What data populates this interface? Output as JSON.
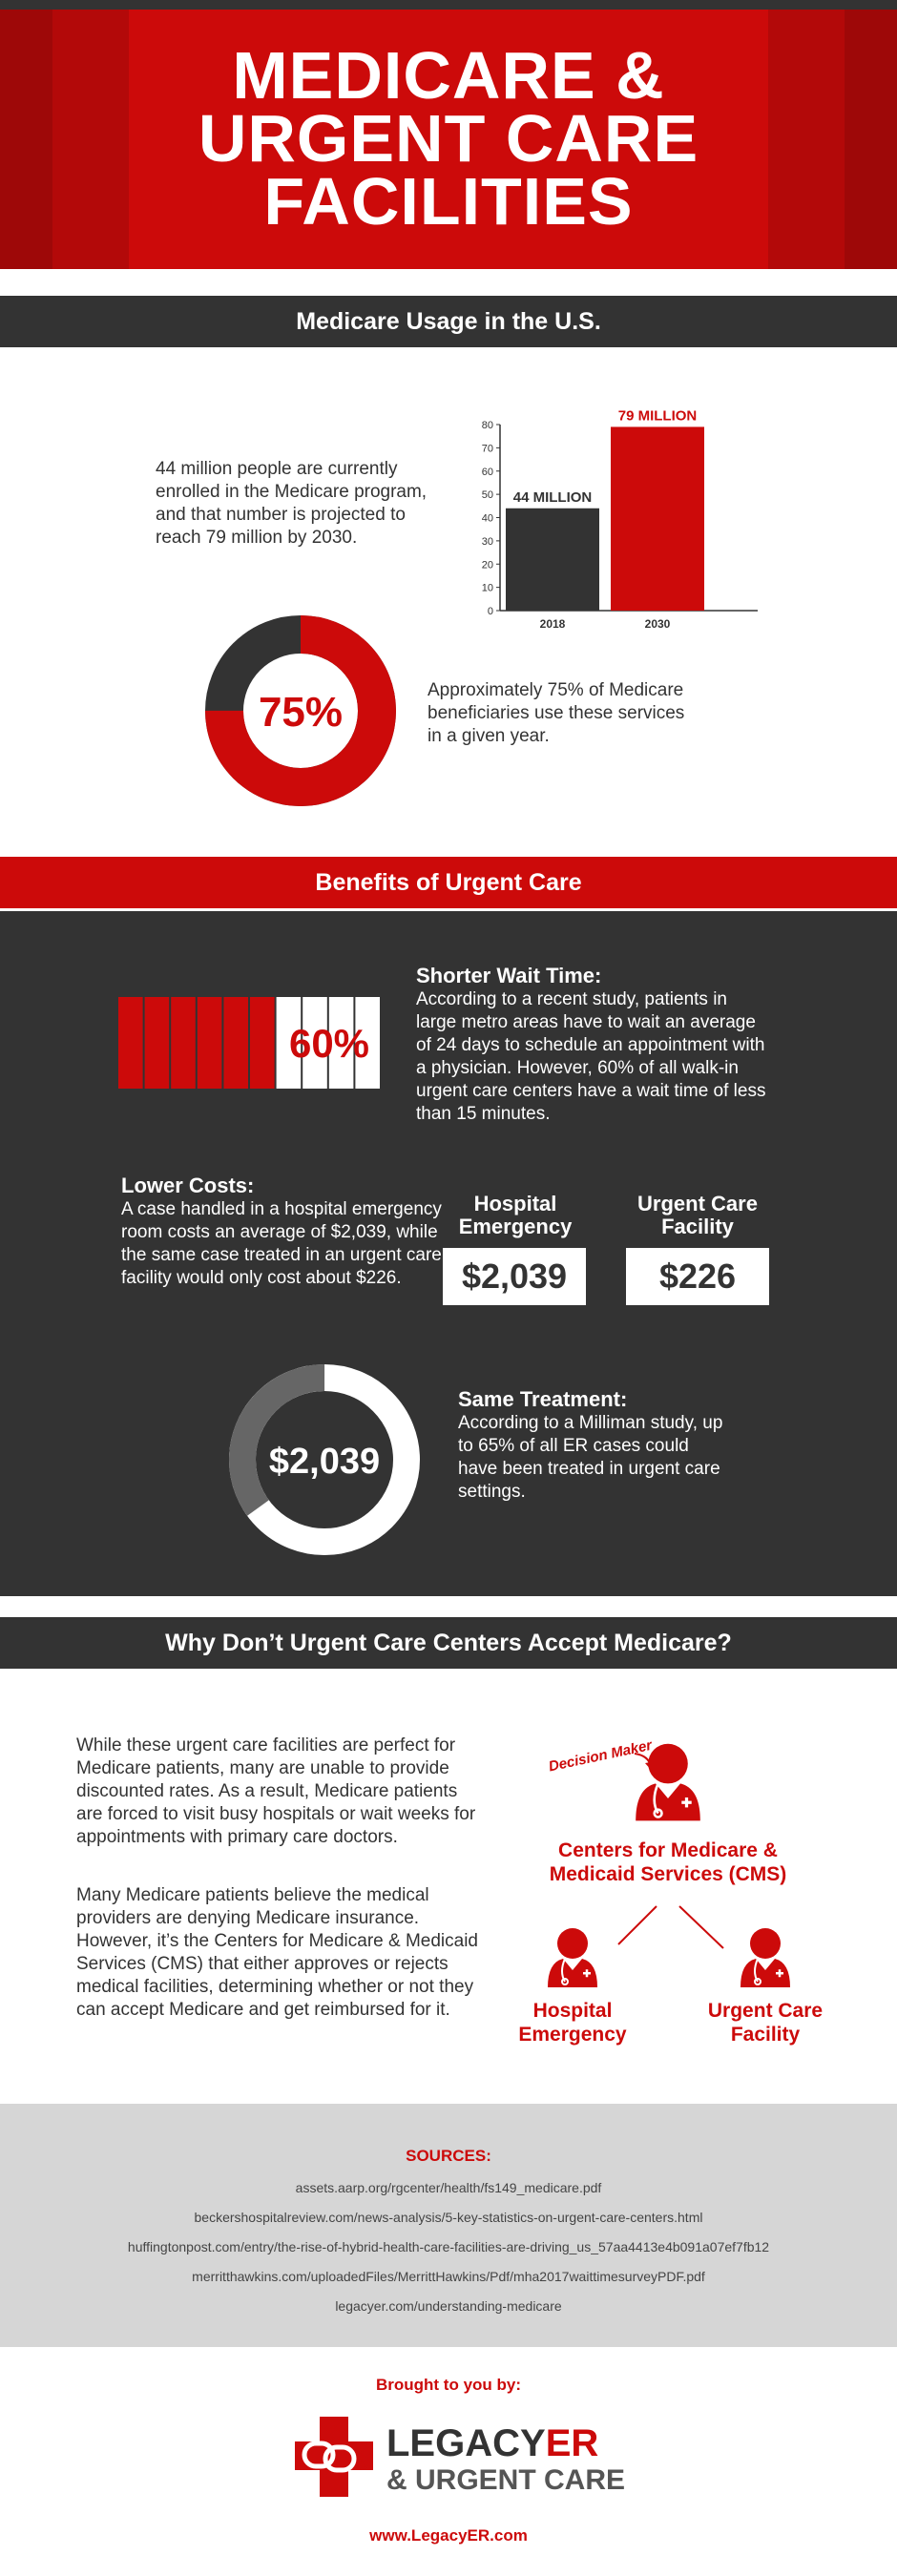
{
  "header": {
    "title_lines": [
      "MEDICARE &",
      "URGENT CARE",
      "FACILITIES"
    ]
  },
  "usage": {
    "heading": "Medicare Usage in the U.S.",
    "text": "44 million people are currently enrolled in the Medicare program, and that number is projected to reach 79 million by 2030.",
    "donut_label": "75%",
    "donut_text": "Approximately 75% of Medicare beneficiaries use these services in a given year."
  },
  "chart_data": {
    "type": "bar",
    "categories": [
      "2018",
      "2030"
    ],
    "values": [
      44,
      79
    ],
    "data_labels": [
      "44 MILLION",
      "79 MILLION"
    ],
    "y_ticks": [
      "0",
      "10",
      "20",
      "30",
      "40",
      "50",
      "60",
      "70",
      "80"
    ],
    "ylim": [
      0,
      80
    ],
    "colors": [
      "#333333",
      "#cc0a0a"
    ]
  },
  "usage_donut": {
    "percent": 75,
    "fill_color": "#cc0a0a",
    "rest_color": "#333333"
  },
  "benefits": {
    "heading": "Benefits of Urgent Care",
    "wait": {
      "title": "Shorter Wait Time:",
      "text": "According to a recent study, patients in large metro areas have to wait an average of 24 days to schedule an appointment with a physician. However, 60% of all walk-in urgent care centers have a wait time of less than 15 minutes.",
      "grid_label": "60%",
      "grid_total": 10,
      "grid_filled": 6
    },
    "costs": {
      "title": "Lower Costs:",
      "text": "A case handled in a hospital emergency room costs an average of $2,039, while the same case treated in an urgent care facility would only cost about $226.",
      "hospital_label": "Hospital Emergency",
      "hospital_value": "$2,039",
      "urgent_label": "Urgent Care Facility",
      "urgent_value": "$226"
    },
    "treatment": {
      "title": "Same Treatment:",
      "text": "According to a Milliman study, up to 65% of all ER cases could have been treated in urgent care settings.",
      "donut_label": "$2,039",
      "donut_percent": 65
    }
  },
  "why": {
    "heading": "Why Don’t Urgent Care Centers Accept Medicare?",
    "p1": "While these urgent care facilities are perfect for Medicare patients, many are unable to provide discounted rates. As a result, Medicare patients are forced to visit busy hospitals or wait weeks for appointments with primary care doctors.",
    "p2": "Many Medicare patients believe the medical providers are denying Medicare insurance. However, it’s the Centers for Medicare & Medicaid Services (CMS) that either approves or rejects medical facilities, determining whether or not they can accept Medicare and get reimbursed for it.",
    "diagram": {
      "decision_label": "Decision Maker",
      "cms_line1": "Centers for Medicare &",
      "cms_line2": "Medicaid Services (CMS)",
      "hospital_line1": "Hospital",
      "hospital_line2": "Emergency",
      "urgent_line1": "Urgent Care",
      "urgent_line2": "Facility"
    }
  },
  "sources": {
    "title": "SOURCES:",
    "items": [
      "assets.aarp.org/rgcenter/health/fs149_medicare.pdf",
      "beckershospitalreview.com/news-analysis/5-key-statistics-on-urgent-care-centers.html",
      "huffingtonpost.com/entry/the-rise-of-hybrid-health-care-facilities-are-driving_us_57aa4413e4b091a07ef7fb12",
      "merritthawkins.com/uploadedFiles/MerrittHawkins/Pdf/mha2017waittimesurveyPDF.pdf",
      "legacyer.com/understanding-medicare"
    ]
  },
  "footer": {
    "brought_by": "Brought to you by:",
    "logo_main": "LEGACY",
    "logo_er": "ER",
    "logo_sub": "& URGENT CARE",
    "website": "www.LegacyER.com"
  }
}
